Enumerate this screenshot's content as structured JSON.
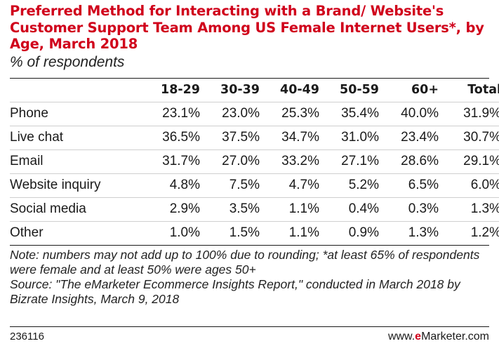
{
  "title": "Preferred Method for Interacting with a Brand/ Website's Customer Support Team Among US Female Internet Users*, by Age, March 2018",
  "subtitle": "% of respondents",
  "chart_data": {
    "type": "table",
    "columns": [
      "",
      "18-29",
      "30-39",
      "40-49",
      "50-59",
      "60+",
      "Total"
    ],
    "rows": [
      {
        "label": "Phone",
        "values": [
          "23.1%",
          "23.0%",
          "25.3%",
          "35.4%",
          "40.0%",
          "31.9%"
        ]
      },
      {
        "label": "Live chat",
        "values": [
          "36.5%",
          "37.5%",
          "34.7%",
          "31.0%",
          "23.4%",
          "30.7%"
        ]
      },
      {
        "label": "Email",
        "values": [
          "31.7%",
          "27.0%",
          "33.2%",
          "27.1%",
          "28.6%",
          "29.1%"
        ]
      },
      {
        "label": "Website inquiry",
        "values": [
          "4.8%",
          "7.5%",
          "4.7%",
          "5.2%",
          "6.5%",
          "6.0%"
        ]
      },
      {
        "label": "Social media",
        "values": [
          "2.9%",
          "3.5%",
          "1.1%",
          "0.4%",
          "0.3%",
          "1.3%"
        ]
      },
      {
        "label": "Other",
        "values": [
          "1.0%",
          "1.5%",
          "1.1%",
          "0.9%",
          "1.3%",
          "1.2%"
        ]
      }
    ]
  },
  "note": "Note: numbers may not add up to 100% due to rounding; *at least 65% of respondents were female and at least 50% were ages 50+",
  "source": "Source: \"The eMarketer Ecommerce Insights Report,\" conducted in March 2018 by Bizrate Insights, March 9, 2018",
  "footer": {
    "chart_id": "236116",
    "brand_prefix": "www.",
    "brand_e": "e",
    "brand_rest": "Marketer",
    "brand_suffix": ".com"
  },
  "colors": {
    "title": "#d0021b",
    "brand_accent": "#d0021b"
  }
}
